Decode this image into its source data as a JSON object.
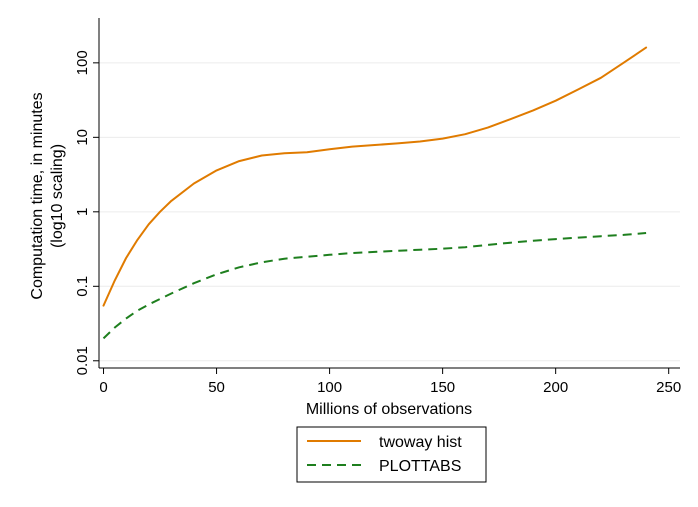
{
  "chart_data": {
    "type": "line",
    "title": "",
    "xlabel": "Millions of observations",
    "ylabel_line1": "Computation time, in minutes",
    "ylabel_line2": "(log10 scaling)",
    "xlim": [
      -2,
      255
    ],
    "ylim": [
      0.008,
      400
    ],
    "yscale": "log",
    "xticks": [
      0,
      50,
      100,
      150,
      200,
      250
    ],
    "xtick_labels": [
      "0",
      "50",
      "100",
      "150",
      "200",
      "250"
    ],
    "yticks": [
      0.01,
      0.1,
      1,
      10,
      100
    ],
    "ytick_labels": [
      "0.01",
      "0.1",
      "1",
      "10",
      "100"
    ],
    "grid": true,
    "legend_position": "bottom",
    "series": [
      {
        "name": "twoway hist",
        "color": "#e07b00",
        "style": "solid",
        "x": [
          0,
          5,
          10,
          15,
          20,
          25,
          30,
          40,
          50,
          60,
          70,
          80,
          90,
          100,
          110,
          120,
          130,
          140,
          150,
          160,
          170,
          180,
          190,
          200,
          210,
          220,
          230,
          240
        ],
        "y": [
          0.055,
          0.12,
          0.24,
          0.42,
          0.68,
          1.0,
          1.4,
          2.4,
          3.6,
          4.8,
          5.7,
          6.1,
          6.3,
          6.9,
          7.5,
          7.9,
          8.3,
          8.8,
          9.6,
          11,
          13.5,
          17.5,
          23,
          31,
          44,
          63,
          100,
          160
        ]
      },
      {
        "name": "PLOTTABS",
        "color": "#1e7f1e",
        "style": "dashed",
        "x": [
          0,
          5,
          10,
          15,
          20,
          30,
          40,
          50,
          60,
          70,
          80,
          90,
          100,
          110,
          120,
          130,
          140,
          150,
          160,
          170,
          180,
          190,
          200,
          210,
          220,
          230,
          240
        ],
        "y": [
          0.02,
          0.028,
          0.037,
          0.047,
          0.057,
          0.08,
          0.11,
          0.145,
          0.18,
          0.21,
          0.235,
          0.25,
          0.265,
          0.28,
          0.29,
          0.3,
          0.31,
          0.32,
          0.335,
          0.36,
          0.385,
          0.41,
          0.43,
          0.45,
          0.47,
          0.49,
          0.52
        ]
      }
    ]
  }
}
